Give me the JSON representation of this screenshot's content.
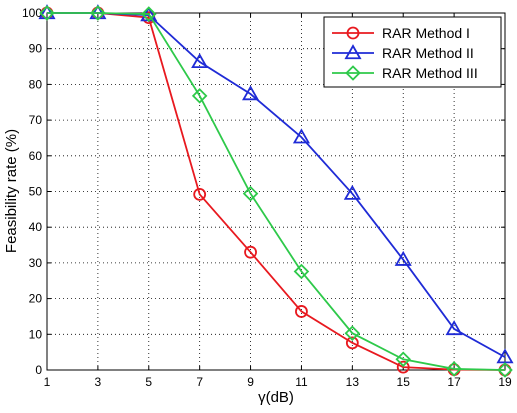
{
  "chart_data": {
    "type": "line",
    "title": "",
    "xlabel": "γ(dB)",
    "ylabel": "Feasibility rate (%)",
    "x": [
      1,
      3,
      5,
      7,
      9,
      11,
      13,
      15,
      17,
      19
    ],
    "xlim": [
      1,
      19
    ],
    "ylim": [
      0,
      100
    ],
    "xticks": [
      1,
      3,
      5,
      7,
      9,
      11,
      13,
      15,
      17,
      19
    ],
    "yticks": [
      0,
      10,
      20,
      30,
      40,
      50,
      60,
      70,
      80,
      90,
      100
    ],
    "grid": true,
    "legend_position": "top-right",
    "series": [
      {
        "name": "RAR Method I",
        "color": "#e8191f",
        "marker": "circle",
        "values": [
          100,
          100,
          98.7,
          49.2,
          33,
          16.4,
          7.6,
          0.8,
          0.1,
          0
        ]
      },
      {
        "name": "RAR Method II",
        "color": "#1f2bd6",
        "marker": "triangle",
        "values": [
          100,
          100,
          99.4,
          86.3,
          77.3,
          65.2,
          49.4,
          30.9,
          11.5,
          3.6
        ]
      },
      {
        "name": "RAR Method III",
        "color": "#2ec94a",
        "marker": "diamond",
        "values": [
          100,
          100,
          99.7,
          76.8,
          49.4,
          27.6,
          10.3,
          3,
          0.3,
          0
        ]
      }
    ]
  }
}
